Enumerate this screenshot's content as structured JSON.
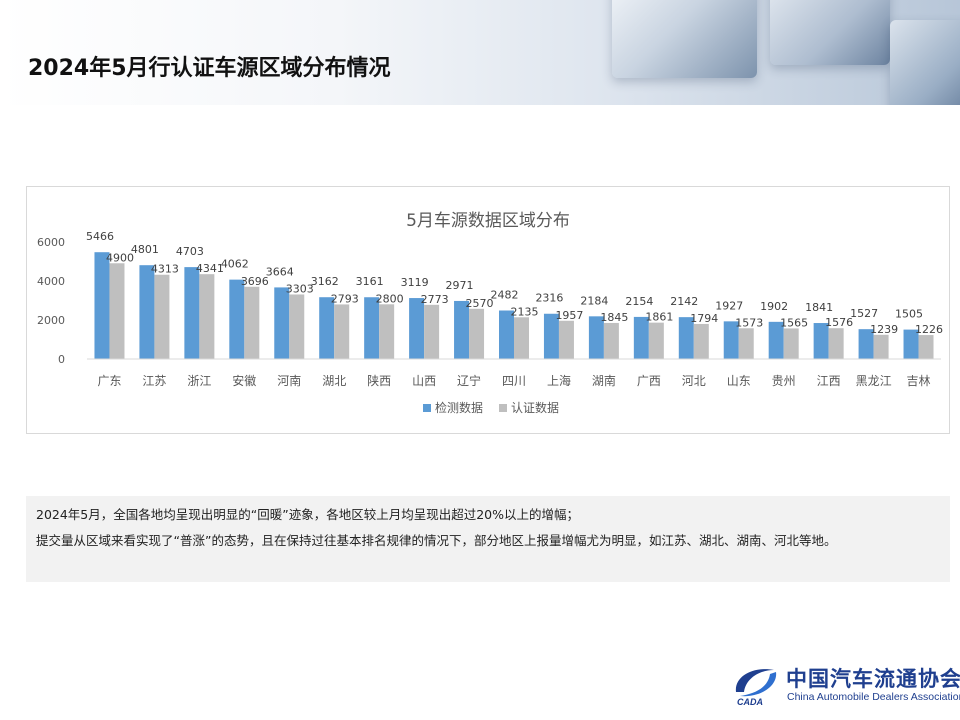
{
  "page": {
    "title": "2024年5月行认证车源区域分布情况"
  },
  "note": {
    "line1": "2024年5月，全国各地均呈现出明显的“回暖”迹象，各地区较上月均呈现出超过20%以上的增幅；",
    "line2": "提交量从区域来看实现了“普涨”的态势，且在保持过往基本排名规律的情况下，部分地区上报量增幅尤为明显，如江苏、湖北、湖南、河北等地。"
  },
  "logo": {
    "cn": "中国汽车流通协会",
    "en": "China Automobile Dealers Association",
    "mark_text": "CADA"
  },
  "colors": {
    "series1": "#5b9bd5",
    "series2": "#bfbfbf",
    "logo": "#1f3f8f"
  },
  "chart_data": {
    "type": "bar",
    "title": "5月车源数据区域分布",
    "categories": [
      "广东",
      "江苏",
      "浙江",
      "安徽",
      "河南",
      "湖北",
      "陕西",
      "山西",
      "辽宁",
      "四川",
      "上海",
      "湖南",
      "广西",
      "河北",
      "山东",
      "贵州",
      "江西",
      "黑龙江",
      "吉林"
    ],
    "series": [
      {
        "name": "检测数据",
        "values": [
          5466,
          4801,
          4703,
          4062,
          3664,
          3162,
          3161,
          3119,
          2971,
          2482,
          2316,
          2184,
          2154,
          2142,
          1927,
          1902,
          1841,
          1527,
          1505
        ]
      },
      {
        "name": "认证数据",
        "values": [
          4900,
          4313,
          4341,
          3696,
          3303,
          2793,
          2800,
          2773,
          2570,
          2135,
          1957,
          1845,
          1861,
          1794,
          1573,
          1565,
          1576,
          1239,
          1226
        ]
      }
    ],
    "yticks": [
      0,
      2000,
      4000,
      6000
    ],
    "ylim": [
      0,
      6500
    ],
    "grid": false,
    "legend": "bottom",
    "data_labels": true
  }
}
